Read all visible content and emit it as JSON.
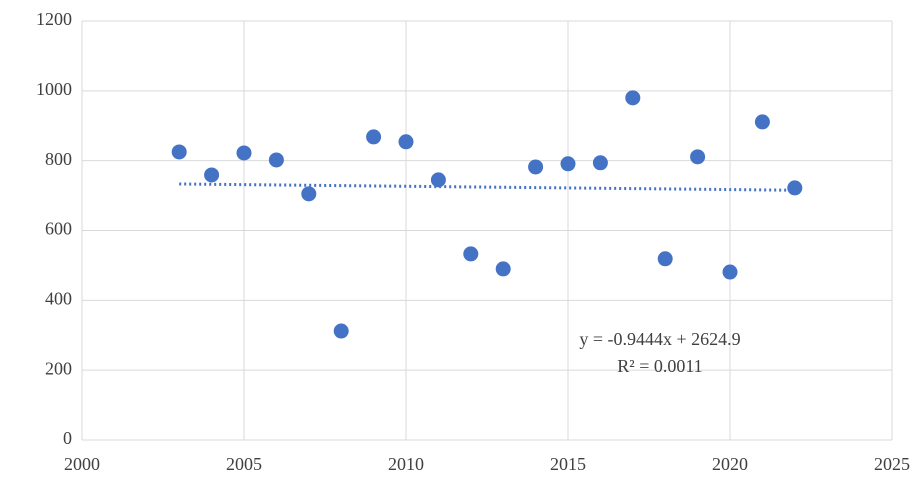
{
  "chart_data": {
    "type": "scatter",
    "x": [
      2003,
      2004,
      2005,
      2006,
      2007,
      2008,
      2009,
      2010,
      2011,
      2012,
      2013,
      2014,
      2015,
      2016,
      2017,
      2018,
      2019,
      2020,
      2021,
      2022
    ],
    "values": [
      825,
      759,
      822,
      802,
      705,
      312,
      868,
      854,
      745,
      533,
      490,
      782,
      791,
      794,
      980,
      519,
      811,
      481,
      911,
      722
    ],
    "color": "#4472c4",
    "xlim": [
      2000,
      2025
    ],
    "xticks": [
      2000,
      2005,
      2010,
      2015,
      2020,
      2025
    ],
    "ylim": [
      0,
      1200
    ],
    "yticks": [
      0,
      200,
      400,
      600,
      800,
      1000,
      1200
    ],
    "grid": true,
    "trendline": {
      "slope": -0.9444,
      "intercept": 2624.9,
      "equation": "y = -0.9444x + 2624.9",
      "r_squared": "R² = 0.0011"
    }
  }
}
